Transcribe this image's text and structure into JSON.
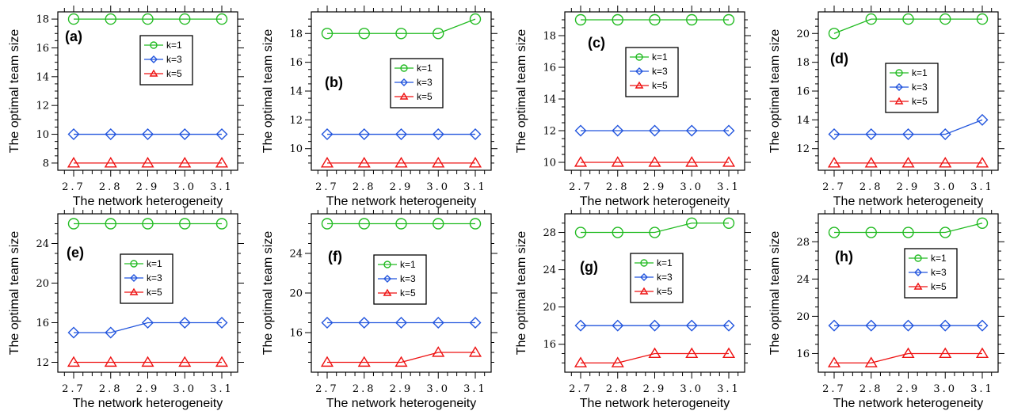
{
  "chart_data": [
    {
      "type": "line",
      "panel_label": "(a)",
      "x": [
        2.7,
        2.8,
        2.9,
        3.0,
        3.1
      ],
      "x_tick_labels": [
        "2.7",
        "2.8",
        "2.9",
        "3.0",
        "3.1"
      ],
      "xlabel": "The network heterogeneity",
      "ylabel": "The optimal team size",
      "ylim": [
        7.5,
        18.5
      ],
      "y_ticks": [
        8,
        10,
        12,
        14,
        16,
        18
      ],
      "y_minor_step": 0.5,
      "legend_position": "upper-right",
      "series": [
        {
          "name": "k=1",
          "color": "#22bb22",
          "marker": "circle",
          "values": [
            18,
            18,
            18,
            18,
            18
          ]
        },
        {
          "name": "k=3",
          "color": "#2255dd",
          "marker": "diamond",
          "values": [
            10,
            10,
            10,
            10,
            10
          ]
        },
        {
          "name": "k=5",
          "color": "#ee1111",
          "marker": "triangle",
          "values": [
            8,
            8,
            8,
            8,
            8
          ]
        }
      ]
    },
    {
      "type": "line",
      "panel_label": "(b)",
      "x": [
        2.7,
        2.8,
        2.9,
        3.0,
        3.1
      ],
      "x_tick_labels": [
        "2.7",
        "2.8",
        "2.9",
        "3.0",
        "3.1"
      ],
      "xlabel": "The network heterogeneity",
      "ylabel": "The optimal team size",
      "ylim": [
        8.5,
        19.5
      ],
      "y_ticks": [
        10,
        12,
        14,
        16,
        18
      ],
      "y_minor_step": 0.5,
      "legend_position": "center-right",
      "series": [
        {
          "name": "k=1",
          "color": "#22bb22",
          "marker": "circle",
          "values": [
            18,
            18,
            18,
            18,
            19
          ]
        },
        {
          "name": "k=3",
          "color": "#2255dd",
          "marker": "diamond",
          "values": [
            11,
            11,
            11,
            11,
            11
          ]
        },
        {
          "name": "k=5",
          "color": "#ee1111",
          "marker": "triangle",
          "values": [
            9,
            9,
            9,
            9,
            9
          ]
        }
      ]
    },
    {
      "type": "line",
      "panel_label": "(c)",
      "x": [
        2.7,
        2.8,
        2.9,
        3.0,
        3.1
      ],
      "x_tick_labels": [
        "2.7",
        "2.8",
        "2.9",
        "3.0",
        "3.1"
      ],
      "xlabel": "The network heterogeneity",
      "ylabel": "The optimal team size",
      "ylim": [
        9.5,
        19.5
      ],
      "y_ticks": [
        10,
        12,
        14,
        16,
        18
      ],
      "y_minor_step": 0.5,
      "legend_position": "upper-right",
      "series": [
        {
          "name": "k=1",
          "color": "#22bb22",
          "marker": "circle",
          "values": [
            19,
            19,
            19,
            19,
            19
          ]
        },
        {
          "name": "k=3",
          "color": "#2255dd",
          "marker": "diamond",
          "values": [
            12,
            12,
            12,
            12,
            12
          ]
        },
        {
          "name": "k=5",
          "color": "#ee1111",
          "marker": "triangle",
          "values": [
            10,
            10,
            10,
            10,
            10
          ]
        }
      ]
    },
    {
      "type": "line",
      "panel_label": "(d)",
      "x": [
        2.7,
        2.8,
        2.9,
        3.0,
        3.1
      ],
      "x_tick_labels": [
        "2.7",
        "2.8",
        "2.9",
        "3.0",
        "3.1"
      ],
      "xlabel": "The network heterogeneity",
      "ylabel": "The optimal team size",
      "ylim": [
        10.5,
        21.5
      ],
      "y_ticks": [
        12,
        14,
        16,
        18,
        20
      ],
      "y_minor_step": 0.5,
      "legend_position": "center-right",
      "series": [
        {
          "name": "k=1",
          "color": "#22bb22",
          "marker": "circle",
          "values": [
            20,
            21,
            21,
            21,
            21
          ]
        },
        {
          "name": "k=3",
          "color": "#2255dd",
          "marker": "diamond",
          "values": [
            13,
            13,
            13,
            13,
            14
          ]
        },
        {
          "name": "k=5",
          "color": "#ee1111",
          "marker": "triangle",
          "values": [
            11,
            11,
            11,
            11,
            11
          ]
        }
      ]
    },
    {
      "type": "line",
      "panel_label": "(e)",
      "x": [
        2.7,
        2.8,
        2.9,
        3.0,
        3.1
      ],
      "x_tick_labels": [
        "2.7",
        "2.8",
        "2.9",
        "3.0",
        "3.1"
      ],
      "xlabel": "The network heterogeneity",
      "ylabel": "The optimal team size",
      "ylim": [
        11,
        27
      ],
      "y_ticks": [
        12,
        16,
        20,
        24
      ],
      "y_minor_step": 1,
      "legend_position": "center",
      "series": [
        {
          "name": "k=1",
          "color": "#22bb22",
          "marker": "circle",
          "values": [
            26,
            26,
            26,
            26,
            26
          ]
        },
        {
          "name": "k=3",
          "color": "#2255dd",
          "marker": "diamond",
          "values": [
            15,
            15,
            16,
            16,
            16
          ]
        },
        {
          "name": "k=5",
          "color": "#ee1111",
          "marker": "triangle",
          "values": [
            12,
            12,
            12,
            12,
            12
          ]
        }
      ]
    },
    {
      "type": "line",
      "panel_label": "(f)",
      "x": [
        2.7,
        2.8,
        2.9,
        3.0,
        3.1
      ],
      "x_tick_labels": [
        "2.7",
        "2.8",
        "2.9",
        "3.0",
        "3.1"
      ],
      "xlabel": "The network heterogeneity",
      "ylabel": "The optimal team size",
      "ylim": [
        12,
        28
      ],
      "y_ticks": [
        16,
        20,
        24
      ],
      "y_minor_step": 1,
      "legend_position": "center",
      "series": [
        {
          "name": "k=1",
          "color": "#22bb22",
          "marker": "circle",
          "values": [
            27,
            27,
            27,
            27,
            27
          ]
        },
        {
          "name": "k=3",
          "color": "#2255dd",
          "marker": "diamond",
          "values": [
            17,
            17,
            17,
            17,
            17
          ]
        },
        {
          "name": "k=5",
          "color": "#ee1111",
          "marker": "triangle",
          "values": [
            13,
            13,
            13,
            14,
            14
          ]
        }
      ]
    },
    {
      "type": "line",
      "panel_label": "(g)",
      "x": [
        2.7,
        2.8,
        2.9,
        3.0,
        3.1
      ],
      "x_tick_labels": [
        "2.7",
        "2.8",
        "2.9",
        "3.0",
        "3.1"
      ],
      "xlabel": "The network heterogeneity",
      "ylabel": "The optimal team size",
      "ylim": [
        13,
        30
      ],
      "y_ticks": [
        16,
        20,
        24,
        28
      ],
      "y_minor_step": 1,
      "legend_position": "center",
      "series": [
        {
          "name": "k=1",
          "color": "#22bb22",
          "marker": "circle",
          "values": [
            28,
            28,
            28,
            29,
            29
          ]
        },
        {
          "name": "k=3",
          "color": "#2255dd",
          "marker": "diamond",
          "values": [
            18,
            18,
            18,
            18,
            18
          ]
        },
        {
          "name": "k=5",
          "color": "#ee1111",
          "marker": "triangle",
          "values": [
            14,
            14,
            15,
            15,
            15
          ]
        }
      ]
    },
    {
      "type": "line",
      "panel_label": "(h)",
      "x": [
        2.7,
        2.8,
        2.9,
        3.0,
        3.1
      ],
      "x_tick_labels": [
        "2.7",
        "2.8",
        "2.9",
        "3.0",
        "3.1"
      ],
      "xlabel": "The network heterogeneity",
      "ylabel": "The optimal team size",
      "ylim": [
        14,
        31
      ],
      "y_ticks": [
        16,
        20,
        24,
        28
      ],
      "y_minor_step": 1,
      "legend_position": "center-right",
      "series": [
        {
          "name": "k=1",
          "color": "#22bb22",
          "marker": "circle",
          "values": [
            29,
            29,
            29,
            29,
            30
          ]
        },
        {
          "name": "k=3",
          "color": "#2255dd",
          "marker": "diamond",
          "values": [
            19,
            19,
            19,
            19,
            19
          ]
        },
        {
          "name": "k=5",
          "color": "#ee1111",
          "marker": "triangle",
          "values": [
            15,
            15,
            16,
            16,
            16
          ]
        }
      ]
    }
  ]
}
